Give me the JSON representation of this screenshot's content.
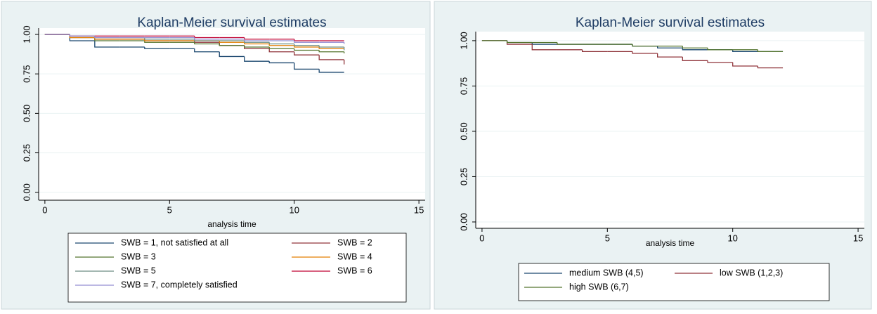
{
  "chart_data": [
    {
      "type": "step",
      "title": "Kaplan-Meier survival estimates",
      "x_label": "analysis time",
      "xlim": [
        -0.25,
        15.25
      ],
      "xticks": [
        0,
        5,
        10,
        15
      ],
      "ylim": [
        -0.05,
        1.04
      ],
      "yticks": [
        {
          "value": 0,
          "label": "0.00"
        },
        {
          "value": 0.25,
          "label": "0.25"
        },
        {
          "value": 0.5,
          "label": "0.50"
        },
        {
          "value": 0.75,
          "label": "0.75"
        },
        {
          "value": 1,
          "label": "1.00"
        }
      ],
      "grid": true,
      "x": [
        0,
        1,
        2,
        3,
        4,
        5,
        6,
        7,
        8,
        9,
        10,
        11,
        12
      ],
      "series": [
        {
          "name": "SWB = 1, not satisfied at all",
          "color": "#1a476f",
          "values": [
            1,
            0.96,
            0.92,
            0.92,
            0.91,
            0.91,
            0.89,
            0.86,
            0.83,
            0.82,
            0.78,
            0.76,
            0.76
          ]
        },
        {
          "name": "SWB = 2",
          "color": "#90353b",
          "values": [
            1,
            0.98,
            0.97,
            0.97,
            0.96,
            0.96,
            0.95,
            0.93,
            0.91,
            0.89,
            0.87,
            0.84,
            0.81
          ]
        },
        {
          "name": "SWB = 3",
          "color": "#55752f",
          "values": [
            1,
            0.98,
            0.96,
            0.96,
            0.95,
            0.95,
            0.94,
            0.93,
            0.92,
            0.91,
            0.9,
            0.89,
            0.88
          ]
        },
        {
          "name": "SWB = 4",
          "color": "#e37e00",
          "values": [
            1,
            0.98,
            0.97,
            0.97,
            0.96,
            0.96,
            0.96,
            0.95,
            0.94,
            0.93,
            0.92,
            0.91,
            0.91
          ]
        },
        {
          "name": "SWB = 5",
          "color": "#6e8e84",
          "values": [
            1,
            0.99,
            0.98,
            0.98,
            0.97,
            0.97,
            0.96,
            0.96,
            0.95,
            0.94,
            0.93,
            0.92,
            0.9
          ]
        },
        {
          "name": "SWB = 6",
          "color": "#c10534",
          "values": [
            1,
            0.99,
            0.99,
            0.99,
            0.99,
            0.99,
            0.98,
            0.98,
            0.97,
            0.97,
            0.96,
            0.96,
            0.96
          ]
        },
        {
          "name": "SWB = 7, completely satisfied",
          "color": "#938dd2",
          "values": [
            1,
            0.99,
            0.98,
            0.98,
            0.98,
            0.98,
            0.97,
            0.97,
            0.96,
            0.96,
            0.95,
            0.95,
            0.94
          ]
        }
      ]
    },
    {
      "type": "step",
      "title": "Kaplan-Meier survival estimates",
      "x_label": "analysis time",
      "xlim": [
        -0.25,
        15.25
      ],
      "xticks": [
        0,
        5,
        10,
        15
      ],
      "ylim": [
        -0.035,
        1.05
      ],
      "yticks": [
        {
          "value": 0,
          "label": "0.00"
        },
        {
          "value": 0.25,
          "label": "0.25"
        },
        {
          "value": 0.5,
          "label": "0.50"
        },
        {
          "value": 0.75,
          "label": "0.75"
        },
        {
          "value": 1,
          "label": "1.00"
        }
      ],
      "grid": true,
      "x": [
        0,
        1,
        2,
        3,
        4,
        5,
        6,
        7,
        8,
        9,
        10,
        11,
        12
      ],
      "series": [
        {
          "name": "medium SWB (4,5)",
          "color": "#1a476f",
          "values": [
            1,
            0.99,
            0.98,
            0.98,
            0.98,
            0.98,
            0.97,
            0.96,
            0.95,
            0.95,
            0.94,
            0.94,
            0.94
          ]
        },
        {
          "name": "low SWB (1,2,3)",
          "color": "#90353b",
          "values": [
            1,
            0.98,
            0.95,
            0.95,
            0.94,
            0.94,
            0.93,
            0.91,
            0.89,
            0.88,
            0.86,
            0.85,
            0.85
          ]
        },
        {
          "name": "high SWB (6,7)",
          "color": "#55752f",
          "values": [
            1,
            0.99,
            0.99,
            0.98,
            0.98,
            0.98,
            0.97,
            0.97,
            0.96,
            0.95,
            0.95,
            0.94,
            0.94
          ]
        }
      ]
    }
  ]
}
